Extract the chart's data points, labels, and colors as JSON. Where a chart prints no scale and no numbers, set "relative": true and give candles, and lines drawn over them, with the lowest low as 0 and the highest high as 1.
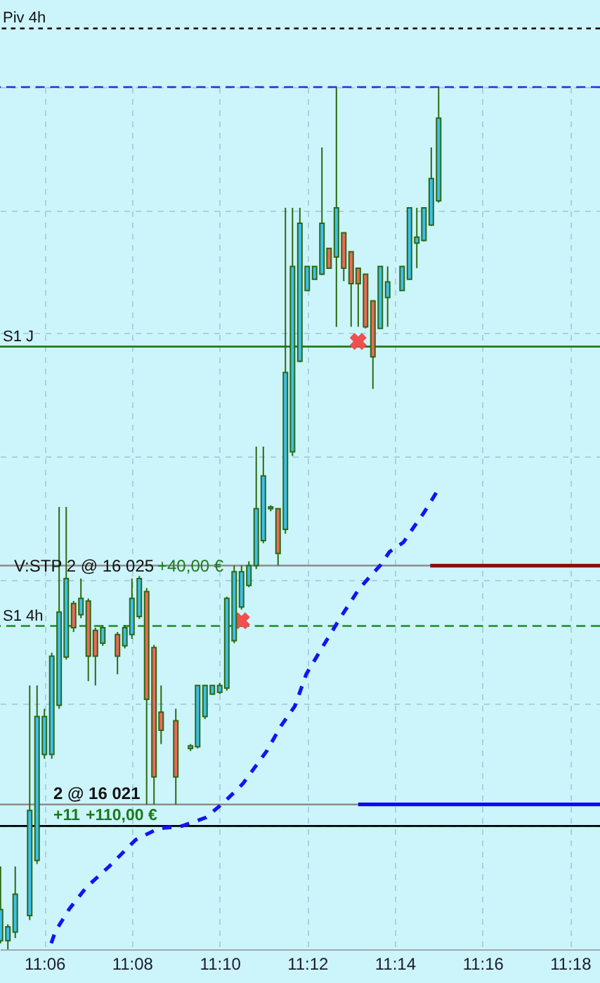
{
  "chart_data": {
    "type": "candlestick",
    "relative": true,
    "color": "#2b6a10",
    "x": [
      11.0833,
      11.0861,
      11.0889,
      11.0944,
      11.0972,
      11.1,
      11.1028,
      11.1056,
      11.1083,
      11.1111,
      11.1139,
      11.1167,
      11.1194,
      11.1222,
      11.1278,
      11.1306,
      11.1333,
      11.1361,
      11.1389,
      11.1417,
      11.1444,
      11.15,
      11.1556,
      11.1583,
      11.1611,
      11.1639,
      11.1667,
      11.1694,
      11.1722,
      11.175,
      11.1778,
      11.1806,
      11.1833,
      11.1861,
      11.1889,
      11.1917,
      11.1944,
      11.1972,
      11.2,
      11.2028,
      11.2056,
      11.2083,
      11.2111,
      11.2139,
      11.2167,
      11.2194,
      11.2222,
      11.225,
      11.2278,
      11.2306,
      11.2361,
      11.2389,
      11.2417,
      11.2444,
      11.2472,
      11.25
    ],
    "ohlc": [
      [
        0.01,
        0.096,
        0.007,
        0.046
      ],
      [
        0.01,
        0.029,
        0.0,
        0.026
      ],
      [
        0.02,
        0.096,
        0.013,
        0.064
      ],
      [
        0.039,
        0.306,
        0.034,
        0.161
      ],
      [
        0.103,
        0.306,
        0.099,
        0.27
      ],
      [
        0.226,
        0.279,
        0.221,
        0.27
      ],
      [
        0.226,
        0.344,
        0.221,
        0.34
      ],
      [
        0.283,
        0.513,
        0.279,
        0.391
      ],
      [
        0.339,
        0.513,
        0.336,
        0.43
      ],
      [
        0.401,
        0.404,
        0.368,
        0.373
      ],
      [
        0.388,
        0.43,
        0.384,
        0.407
      ],
      [
        0.404,
        0.407,
        0.311,
        0.34
      ],
      [
        0.37,
        0.373,
        0.306,
        0.34
      ],
      [
        0.355,
        0.376,
        0.352,
        0.373
      ],
      [
        0.365,
        0.368,
        0.319,
        0.34
      ],
      [
        0.352,
        0.376,
        0.349,
        0.373
      ],
      [
        0.365,
        0.43,
        0.36,
        0.407
      ],
      [
        0.386,
        0.433,
        0.383,
        0.43
      ],
      [
        0.415,
        0.419,
        0.168,
        0.29
      ],
      [
        0.35,
        0.353,
        0.168,
        0.2
      ],
      [
        0.275,
        0.306,
        0.238,
        0.254
      ],
      [
        0.265,
        0.279,
        0.168,
        0.2
      ],
      [
        0.233,
        0.238,
        0.23,
        0.236
      ],
      [
        0.235,
        0.306,
        0.233,
        0.306
      ],
      [
        0.27,
        0.306,
        0.267,
        0.306
      ],
      [
        0.296,
        0.306,
        0.295,
        0.306
      ],
      [
        0.298,
        0.309,
        0.296,
        0.306
      ],
      [
        0.303,
        0.409,
        0.3,
        0.407
      ],
      [
        0.358,
        0.445,
        0.355,
        0.438
      ],
      [
        0.397,
        0.445,
        0.394,
        0.438
      ],
      [
        0.422,
        0.45,
        0.42,
        0.445
      ],
      [
        0.445,
        0.583,
        0.441,
        0.511
      ],
      [
        0.474,
        0.583,
        0.471,
        0.549
      ],
      [
        0.511,
        0.515,
        0.508,
        0.513
      ],
      [
        0.511,
        0.511,
        0.445,
        0.459
      ],
      [
        0.487,
        0.86,
        0.482,
        0.669
      ],
      [
        0.577,
        0.86,
        0.572,
        0.792
      ],
      [
        0.682,
        0.86,
        0.681,
        0.842
      ],
      [
        0.764,
        0.792,
        0.764,
        0.792
      ],
      [
        0.777,
        0.792,
        0.777,
        0.792
      ],
      [
        0.783,
        0.93,
        0.782,
        0.842
      ],
      [
        0.813,
        0.813,
        0.79,
        0.79
      ],
      [
        0.803,
        1.0,
        0.722,
        0.86
      ],
      [
        0.831,
        0.831,
        0.775,
        0.79
      ],
      [
        0.809,
        0.809,
        0.722,
        0.772
      ],
      [
        0.79,
        0.79,
        0.722,
        0.772
      ],
      [
        0.783,
        0.783,
        0.72,
        0.722
      ],
      [
        0.752,
        0.752,
        0.65,
        0.687
      ],
      [
        0.72,
        0.792,
        0.72,
        0.792
      ],
      [
        0.756,
        0.792,
        0.722,
        0.774
      ],
      [
        0.764,
        0.792,
        0.764,
        0.792
      ],
      [
        0.777,
        0.86,
        0.777,
        0.86
      ],
      [
        0.819,
        0.86,
        0.79,
        0.826
      ],
      [
        0.822,
        0.86,
        0.821,
        0.86
      ],
      [
        0.84,
        0.93,
        0.839,
        0.894
      ],
      [
        0.868,
        1.0,
        0.866,
        0.964
      ]
    ],
    "colors": [
      "#3dbfee",
      "#3dbfee",
      "#3dbfee",
      "#3dbfee",
      "#3dbfee",
      "#3dbfee",
      "#3dbfee",
      "#3dbfee",
      "#3dbfee",
      "#f0675a",
      "#3dbfee",
      "#f0675a",
      "#f0675a",
      "#3dbfee",
      "#f0675a",
      "#3dbfee",
      "#3dbfee",
      "#3dbfee",
      "#f0675a",
      "#f0675a",
      "#f0675a",
      "#f0675a",
      "#3dbfee",
      "#3dbfee",
      "#3dbfee",
      "#3dbfee",
      "#3dbfee",
      "#3dbfee",
      "#3dbfee",
      "#3dbfee",
      "#3dbfee",
      "#3dbfee",
      "#3dbfee",
      "#3dbfee",
      "#f0675a",
      "#3dbfee",
      "#3dbfee",
      "#3dbfee",
      "#3dbfee",
      "#3dbfee",
      "#3dbfee",
      "#f0675a",
      "#3dbfee",
      "#f0675a",
      "#f0675a",
      "#f0675a",
      "#f0675a",
      "#f0675a",
      "#3dbfee",
      "#3dbfee",
      "#3dbfee",
      "#3dbfee",
      "#3dbfee",
      "#3dbfee",
      "#3dbfee",
      "#3dbfee"
    ],
    "xlim": [
      11.0831,
      11.3114
    ],
    "xticks": [
      {
        "value": 11.1,
        "label": "11:06"
      },
      {
        "value": 11.1333,
        "label": "11:08"
      },
      {
        "value": 11.1667,
        "label": "11:10"
      },
      {
        "value": 11.2,
        "label": "11:12"
      },
      {
        "value": 11.2333,
        "label": "11:14"
      },
      {
        "value": 11.2667,
        "label": "11:16"
      },
      {
        "value": 11.3,
        "label": "11:18"
      }
    ],
    "tick_labels": "x",
    "grid": true,
    "series": [
      {
        "type": "line",
        "color": "#1414f0",
        "line_style": "dotted",
        "x": [
          11.1026,
          11.1042,
          11.1095,
          11.116,
          11.1246,
          11.1347,
          11.1433,
          11.1524,
          11.1616,
          11.1685,
          11.1755,
          11.1846,
          11.19,
          11.1953,
          11.1996,
          11.2061,
          11.2125,
          11.2195,
          11.2238,
          11.228,
          11.2313,
          11.2366,
          11.2404,
          11.2441,
          11.2474,
          11.25
        ],
        "values": [
          0.007,
          0.021,
          0.047,
          0.072,
          0.096,
          0.127,
          0.14,
          0.143,
          0.153,
          0.171,
          0.192,
          0.23,
          0.259,
          0.282,
          0.319,
          0.352,
          0.384,
          0.417,
          0.432,
          0.446,
          0.461,
          0.472,
          0.489,
          0.505,
          0.521,
          0.534
        ]
      },
      {
        "type": "scatter",
        "color": "#ee5050",
        "marker": "cross",
        "x": [
          11.175,
          11.2194
        ],
        "values": [
          0.381,
          0.705
        ]
      },
      {
        "type": "line",
        "color": "#0a0af0",
        "line_style": "solid",
        "x": [
          11.2194,
          11.3114
        ],
        "values": [
          0.168,
          0.168
        ]
      },
      {
        "type": "line",
        "color": "#8b1010",
        "line_style": "solid",
        "x": [
          11.2468,
          11.3114
        ],
        "values": [
          0.445,
          0.445
        ]
      }
    ],
    "ref_lines": [
      {
        "axis": "y",
        "value": 1.068,
        "label": "Piv 4h",
        "color": "#000000",
        "line_style": "dotted"
      },
      {
        "axis": "y",
        "value": 1.0,
        "color": "#2a2ae0",
        "line_style": "dashed"
      },
      {
        "axis": "y",
        "value": 0.699,
        "label": "S1 J",
        "color": "#1d7a1d",
        "line_style": "solid"
      },
      {
        "axis": "y",
        "value": 0.445,
        "color": "#8c8c8c",
        "line_style": "solid"
      },
      {
        "axis": "y",
        "value": 0.375,
        "label": "S1 4h",
        "color": "#1a8c1a",
        "line_style": "dashed"
      },
      {
        "axis": "y",
        "value": 0.168,
        "color": "#8c8c8c",
        "line_style": "solid"
      },
      {
        "axis": "y",
        "value": 0.143,
        "color": "#000000",
        "line_style": "solid"
      }
    ],
    "annotations": [
      "V:STP 2 @ 16 025",
      "+40,00 €",
      "2 @ 16 021",
      "+11",
      "+110,00 €"
    ]
  }
}
